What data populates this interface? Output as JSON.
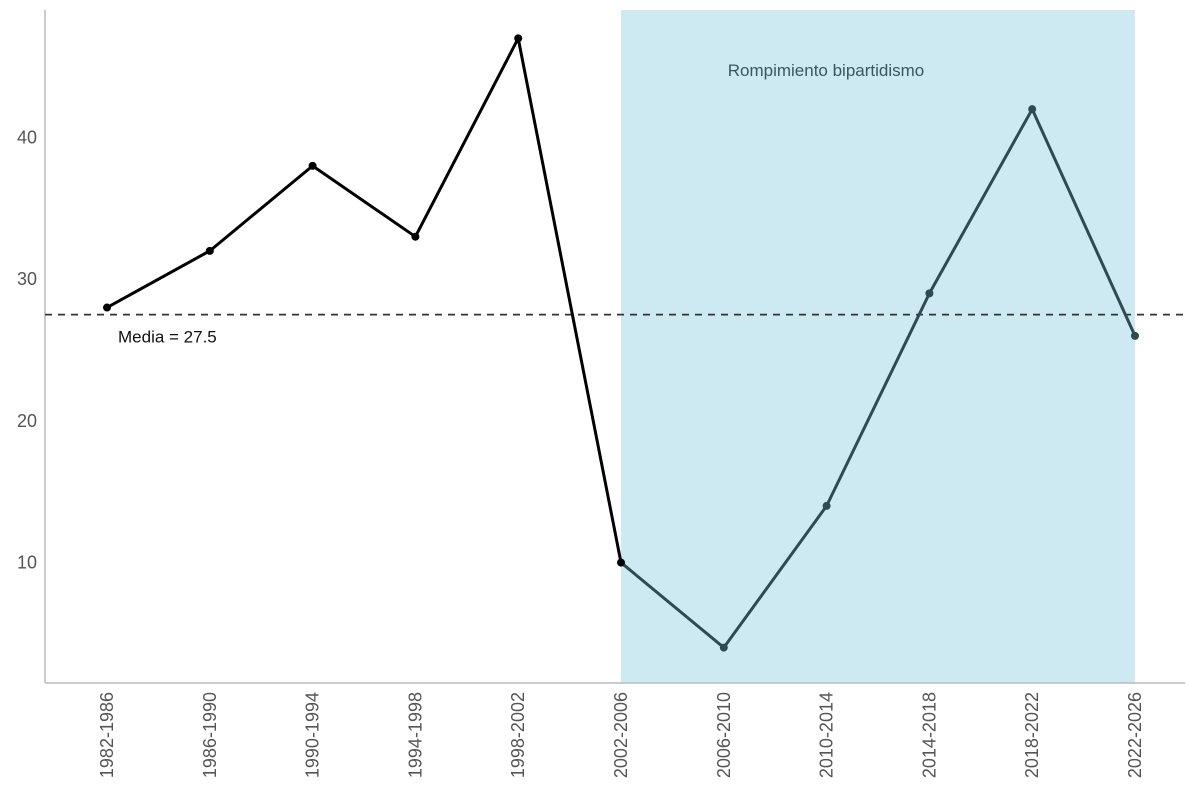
{
  "chart_data": {
    "type": "line",
    "title": "",
    "xlabel": "",
    "ylabel": "",
    "categories": [
      "1982-1986",
      "1986-1990",
      "1990-1994",
      "1994-1998",
      "1998-2002",
      "2002-2006",
      "2006-2010",
      "2010-2014",
      "2014-2018",
      "2018-2022",
      "2022-2026"
    ],
    "values": [
      28,
      32,
      38,
      33,
      47,
      10,
      4,
      14,
      29,
      42,
      26
    ],
    "ylim": [
      1.5,
      49
    ],
    "yticks": [
      10,
      20,
      30,
      40
    ],
    "ytick_labels": [
      "10",
      "20",
      "30",
      "40"
    ],
    "grid": false,
    "legend": "none",
    "mean_line": {
      "value": 27.5,
      "label": "Media = 27.5",
      "style": "dashed"
    },
    "highlight_region": {
      "from_category": "2002-2006",
      "to_category": "2022-2026",
      "label": "Rompimiento bipartidismo",
      "color": "#cdeaf3"
    },
    "colors": {
      "line_before": "#000000",
      "line_in_region": "#2e4a52",
      "mean_line": "#333333",
      "region_label": "#3b5560",
      "axis": "#bbbbbb"
    }
  }
}
